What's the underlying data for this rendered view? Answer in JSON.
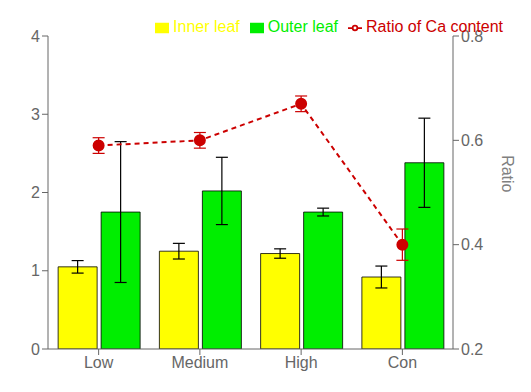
{
  "chart_data": {
    "type": "bar",
    "categories": [
      "Low",
      "Medium",
      "High",
      "Con"
    ],
    "series": [
      {
        "name": "Inner leaf",
        "type": "bar",
        "color": "#ffff00",
        "values": [
          1.05,
          1.25,
          1.22,
          0.92
        ],
        "errors": [
          0.08,
          0.1,
          0.06,
          0.14
        ]
      },
      {
        "name": "Outer leaf",
        "type": "bar",
        "color": "#00ee00",
        "values": [
          1.75,
          2.02,
          1.75,
          2.38
        ],
        "errors": [
          0.9,
          0.43,
          0.05,
          0.57
        ]
      },
      {
        "name": "Ratio of Ca content",
        "type": "line",
        "axis": "y2",
        "color": "#cc0000",
        "marker": "circle",
        "line_style": "dashed",
        "values": [
          0.59,
          0.6,
          0.67,
          0.4
        ],
        "errors": [
          0.015,
          0.015,
          0.015,
          0.03
        ]
      }
    ],
    "ylim": [
      0,
      4
    ],
    "yticks": [
      0,
      1,
      2,
      3,
      4
    ],
    "y2lim": [
      0.2,
      0.8
    ],
    "y2ticks": [
      0.2,
      0.4,
      0.6,
      0.8
    ],
    "y2label": "Ratio",
    "legend": "upper right",
    "grid": false
  }
}
